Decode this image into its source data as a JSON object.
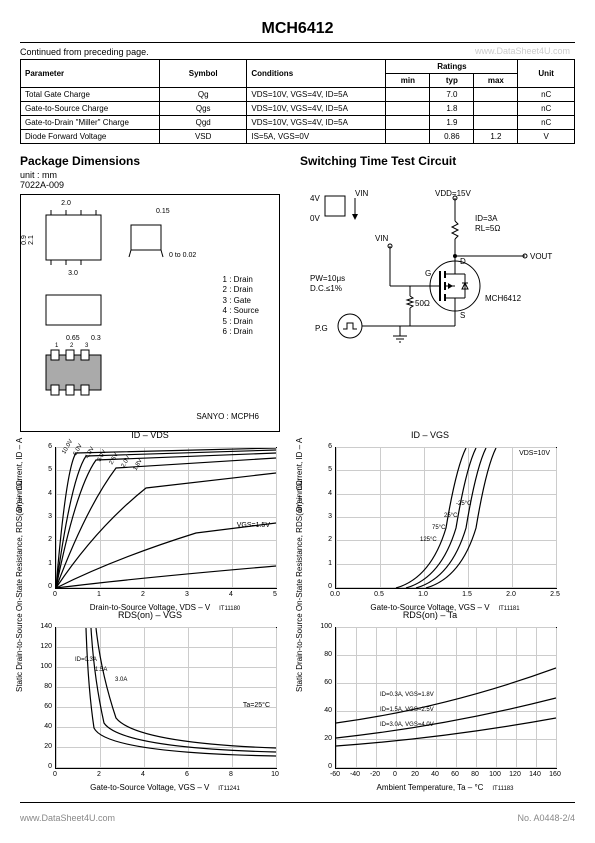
{
  "title": "MCH6412",
  "continued": "Continued from preceding page.",
  "watermark": "www.DataSheet4U.com",
  "table": {
    "headers": [
      "Parameter",
      "Symbol",
      "Conditions",
      "min",
      "typ",
      "max",
      "Unit"
    ],
    "ratings_header": "Ratings",
    "rows": [
      {
        "param": "Total Gate Charge",
        "symbol": "Qg",
        "cond": "VDS=10V, VGS=4V, ID=5A",
        "min": "",
        "typ": "7.0",
        "max": "",
        "unit": "nC"
      },
      {
        "param": "Gate-to-Source Charge",
        "symbol": "Qgs",
        "cond": "VDS=10V, VGS=4V, ID=5A",
        "min": "",
        "typ": "1.8",
        "max": "",
        "unit": "nC"
      },
      {
        "param": "Gate-to-Drain \"Miller\" Charge",
        "symbol": "Qgd",
        "cond": "VDS=10V, VGS=4V, ID=5A",
        "min": "",
        "typ": "1.9",
        "max": "",
        "unit": "nC"
      },
      {
        "param": "Diode Forward Voltage",
        "symbol": "VSD",
        "cond": "IS=5A, VGS=0V",
        "min": "",
        "typ": "0.86",
        "max": "1.2",
        "unit": "V"
      }
    ]
  },
  "package": {
    "title": "Package Dimensions",
    "unit": "unit : mm",
    "code": "7022A-009",
    "dims": {
      "w": "2.0",
      "w2": "3.0",
      "clearance": "0.15",
      "h": "2.1",
      "h2": "0.9",
      "pitch": "0.65",
      "lead": "0.3",
      "thk": "0 to 0.02"
    },
    "pins": [
      "1 : Drain",
      "2 : Drain",
      "3 : Gate",
      "4 : Source",
      "5 : Drain",
      "6 : Drain"
    ],
    "marking": "SANYO : MCPH6"
  },
  "circuit": {
    "title": "Switching Time Test Circuit",
    "vin_hi": "4V",
    "vin_lo": "0V",
    "vin_label": "VIN",
    "vdd": "VDD=15V",
    "id": "ID=3A",
    "rl": "RL=5Ω",
    "vout": "VOUT",
    "pw": "PW=10μs",
    "dc": "D.C.≤1%",
    "pg": "P.G",
    "r50": "50Ω",
    "g": "G",
    "d": "D",
    "s": "S",
    "part": "MCH6412"
  },
  "charts": {
    "c1": {
      "title": "ID ‒ VDS",
      "ylabel": "Drain Current, ID ‒ A",
      "xlabel": "Drain-to-Source Voltage, VDS ‒ V",
      "ref": "IT11180",
      "ylim": [
        0,
        6
      ],
      "ytick": 1,
      "xlim": [
        0,
        5
      ],
      "xtick": 1,
      "curves": [
        "10.0V",
        "6.0V",
        "4.0V",
        "3.0V",
        "2.5V",
        "2.0V",
        "1.8V"
      ],
      "annotation": "VGS=1.5V",
      "grid_color": "#cccccc"
    },
    "c2": {
      "title": "ID ‒ VGS",
      "ylabel": "Drain Current, ID ‒ A",
      "xlabel": "Gate-to-Source Voltage, VGS ‒ V",
      "ref": "IT11181",
      "ylim": [
        0,
        6
      ],
      "ytick": 1,
      "xlim": [
        0,
        2.5
      ],
      "xtick": 0.5,
      "annotation": "VDS=10V",
      "curves": [
        "125°C",
        "75°C",
        "25°C",
        "-25°C"
      ],
      "grid_color": "#cccccc"
    },
    "c3": {
      "title": "RDS(on) ‒ VGS",
      "ylabel": "Static Drain-to-Source\nOn-State Resistance, RDS(on) ‒ mΩ",
      "xlabel": "Gate-to-Source Voltage, VGS ‒ V",
      "ref": "IT11241",
      "ylim": [
        0,
        140
      ],
      "ytick": 20,
      "xlim": [
        0,
        10
      ],
      "xtick": 2,
      "annotation": "Ta=25°C",
      "curves": [
        "ID=0.3A",
        "1.5A",
        "3.0A"
      ],
      "grid_color": "#cccccc"
    },
    "c4": {
      "title": "RDS(on) ‒ Ta",
      "ylabel": "Static Drain-to-Source\nOn-State Resistance, RDS(on) ‒ mΩ",
      "xlabel": "Ambient Temperature, Ta ‒ °C",
      "ref": "IT11183",
      "ylim": [
        0,
        100
      ],
      "ytick": 20,
      "xlim": [
        -60,
        160
      ],
      "xtick": 20,
      "curves": [
        "ID=0.3A, VGS=1.8V",
        "ID=1.5A, VGS=2.5V",
        "ID=3.0A, VGS=4.0V"
      ],
      "grid_color": "#cccccc"
    }
  },
  "footer": {
    "left": "www.DataSheet4U.com",
    "right": "No. A0448-2/4"
  }
}
